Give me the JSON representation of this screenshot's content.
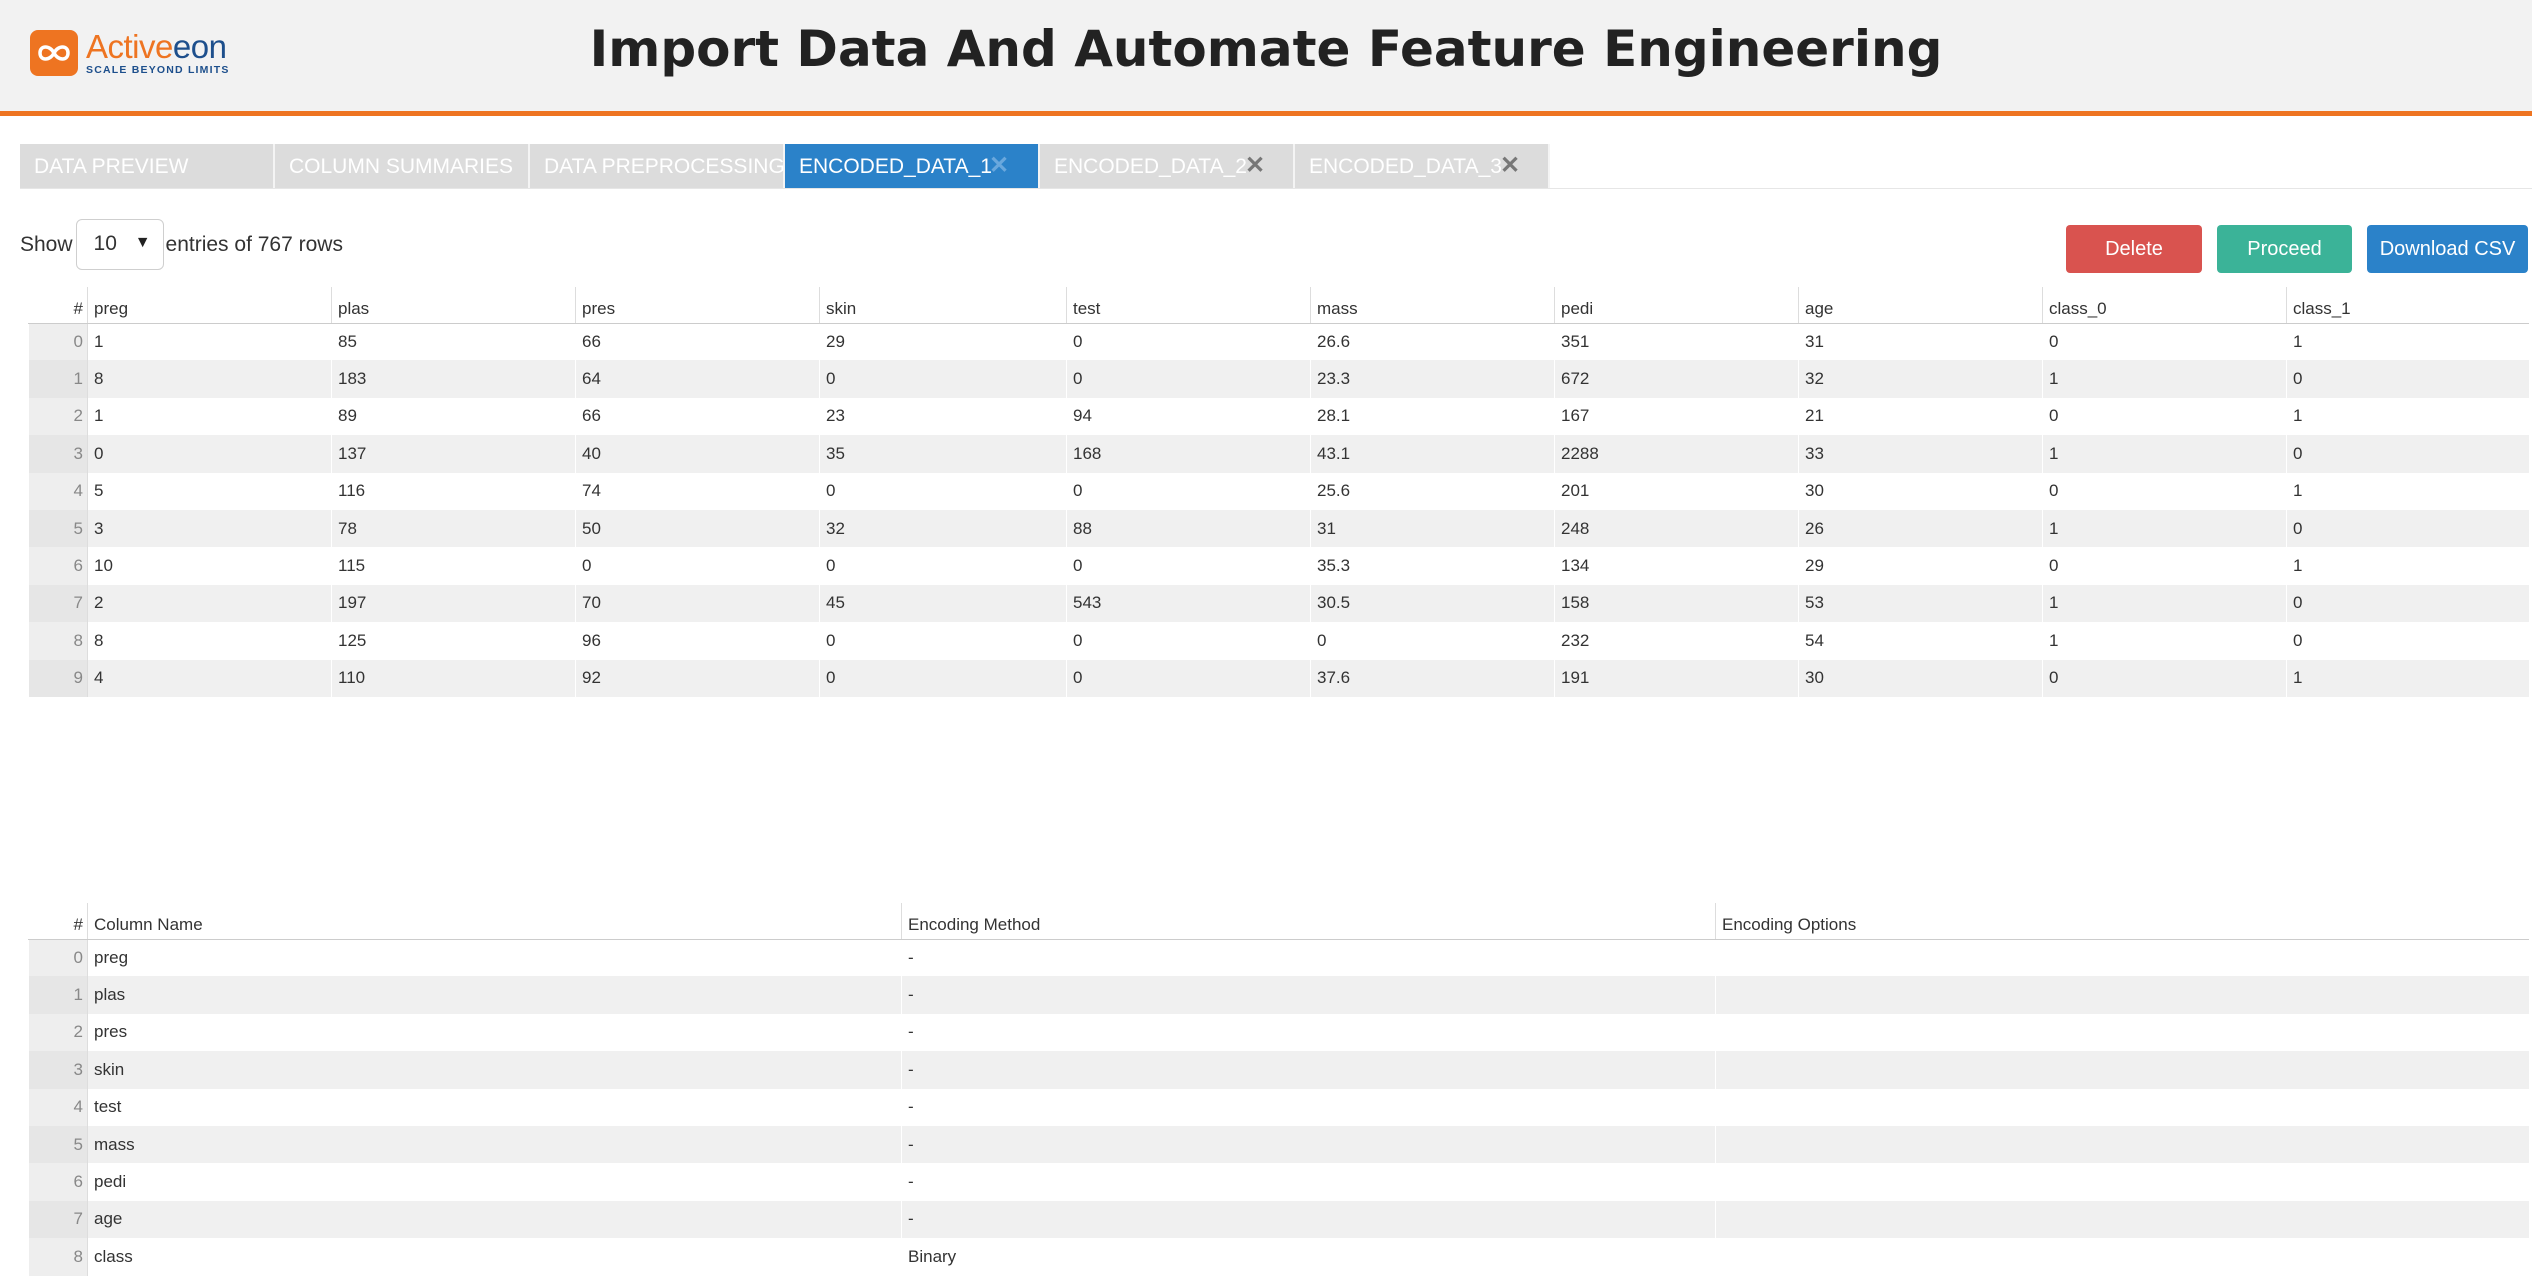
{
  "header": {
    "logo_name_prefix": "Active",
    "logo_name_suffix": "eon",
    "logo_tagline": "SCALE BEYOND LIMITS",
    "title": "Import Data And Automate Feature Engineering"
  },
  "tabs": [
    {
      "label": "DATA PREVIEW",
      "active": false,
      "closable": false
    },
    {
      "label": "COLUMN SUMMARIES",
      "active": false,
      "closable": false
    },
    {
      "label": "DATA PREPROCESSING",
      "active": false,
      "closable": false
    },
    {
      "label": "ENCODED_DATA_1",
      "active": true,
      "closable": true
    },
    {
      "label": "ENCODED_DATA_2",
      "active": false,
      "closable": true
    },
    {
      "label": "ENCODED_DATA_3",
      "active": false,
      "closable": true
    }
  ],
  "controls": {
    "show_label": "Show",
    "entries_value": "10",
    "entries_label": "entries of 767 rows"
  },
  "buttons": {
    "delete": "Delete",
    "proceed": "Proceed",
    "download_csv": "Download CSV"
  },
  "colors": {
    "accent_orange": "#ee7421",
    "tab_active": "#2b82c9",
    "delete": "#d9534f",
    "proceed": "#3bb398",
    "download": "#2b82c9"
  },
  "data_table": {
    "columns": [
      "#",
      "preg",
      "plas",
      "pres",
      "skin",
      "test",
      "mass",
      "pedi",
      "age",
      "class_0",
      "class_1"
    ],
    "rows": [
      [
        "0",
        "1",
        "85",
        "66",
        "29",
        "0",
        "26.6",
        "351",
        "31",
        "0",
        "1"
      ],
      [
        "1",
        "8",
        "183",
        "64",
        "0",
        "0",
        "23.3",
        "672",
        "32",
        "1",
        "0"
      ],
      [
        "2",
        "1",
        "89",
        "66",
        "23",
        "94",
        "28.1",
        "167",
        "21",
        "0",
        "1"
      ],
      [
        "3",
        "0",
        "137",
        "40",
        "35",
        "168",
        "43.1",
        "2288",
        "33",
        "1",
        "0"
      ],
      [
        "4",
        "5",
        "116",
        "74",
        "0",
        "0",
        "25.6",
        "201",
        "30",
        "0",
        "1"
      ],
      [
        "5",
        "3",
        "78",
        "50",
        "32",
        "88",
        "31",
        "248",
        "26",
        "1",
        "0"
      ],
      [
        "6",
        "10",
        "115",
        "0",
        "0",
        "0",
        "35.3",
        "134",
        "29",
        "0",
        "1"
      ],
      [
        "7",
        "2",
        "197",
        "70",
        "45",
        "543",
        "30.5",
        "158",
        "53",
        "1",
        "0"
      ],
      [
        "8",
        "8",
        "125",
        "96",
        "0",
        "0",
        "0",
        "232",
        "54",
        "1",
        "0"
      ],
      [
        "9",
        "4",
        "110",
        "92",
        "0",
        "0",
        "37.6",
        "191",
        "30",
        "0",
        "1"
      ]
    ]
  },
  "encoding_table": {
    "columns": [
      "#",
      "Column Name",
      "Encoding Method",
      "Encoding Options"
    ],
    "rows": [
      [
        "0",
        "preg",
        "-",
        ""
      ],
      [
        "1",
        "plas",
        "-",
        ""
      ],
      [
        "2",
        "pres",
        "-",
        ""
      ],
      [
        "3",
        "skin",
        "-",
        ""
      ],
      [
        "4",
        "test",
        "-",
        ""
      ],
      [
        "5",
        "mass",
        "-",
        ""
      ],
      [
        "6",
        "pedi",
        "-",
        ""
      ],
      [
        "7",
        "age",
        "-",
        ""
      ],
      [
        "8",
        "class",
        "Binary",
        ""
      ]
    ]
  }
}
